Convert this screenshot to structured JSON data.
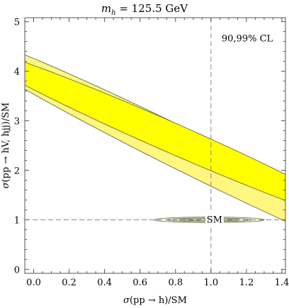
{
  "chart_data": {
    "type": "contour",
    "title": "m_h = 125.5 GeV",
    "title_parts": {
      "var": "m",
      "sub": "h",
      "rest": " = 125.5 GeV"
    },
    "xlabel": "σ(pp → h)/SM",
    "ylabel": "σ(pp → hV, hjj)/SM",
    "xlim": [
      -0.05,
      1.42
    ],
    "ylim": [
      -0.08,
      5.08
    ],
    "xticks": [
      0.0,
      0.2,
      0.4,
      0.6,
      0.8,
      1.0,
      1.2,
      1.4
    ],
    "xtick_labels": [
      "0.0",
      "0.2",
      "0.4",
      "0.6",
      "0.8",
      "1.0",
      "1.2",
      "1.4"
    ],
    "yticks": [
      0,
      1,
      2,
      3,
      4,
      5
    ],
    "ytick_labels": [
      "0",
      "1",
      "2",
      "3",
      "4",
      "5"
    ],
    "annotation": "90,99% CL",
    "sm_point": {
      "x": 1.0,
      "y": 1.0,
      "label": "SM"
    },
    "reference_lines": {
      "x": 1.0,
      "y": 1.0
    },
    "regions": [
      {
        "cl": "99%",
        "color": "#fff780",
        "center": [
          0.89,
          2.33
        ],
        "semi_axes": [
          2.93,
          0.225
        ],
        "angle_deg": -61
      },
      {
        "cl": "90%",
        "color": "#ffff00",
        "center": [
          0.75,
          2.7
        ],
        "semi_axes": [
          2.12,
          0.175
        ],
        "angle_deg": -58
      }
    ],
    "small_contours": [
      {
        "center": [
          0.99,
          1.0
        ],
        "semi_axes": [
          0.31,
          0.055
        ]
      },
      {
        "center": [
          0.99,
          1.0
        ],
        "semi_axes": [
          0.24,
          0.035
        ]
      },
      {
        "center": [
          0.99,
          1.0
        ],
        "semi_axes": [
          0.17,
          0.018
        ]
      }
    ],
    "grid": false,
    "colors": {
      "outer": "#fff780",
      "inner": "#ffff00",
      "edge": "#77774f",
      "dash": "#888888"
    }
  }
}
